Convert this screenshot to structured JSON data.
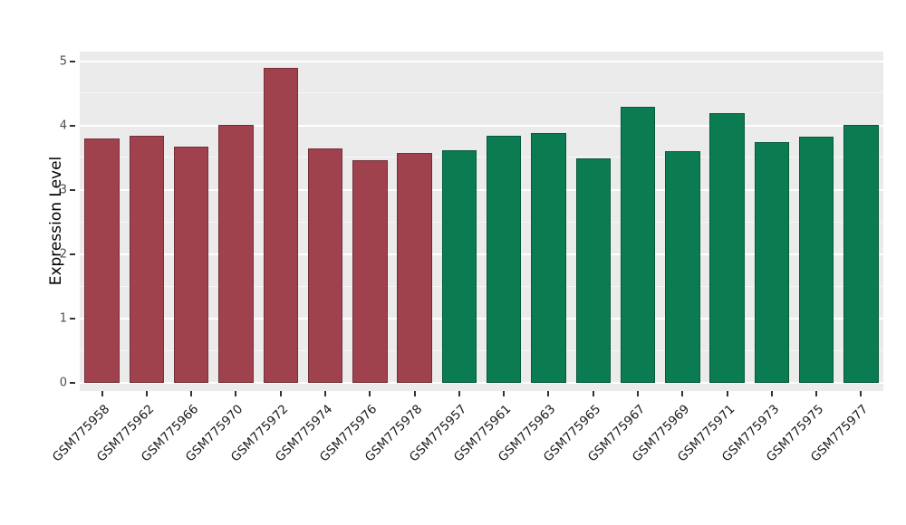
{
  "chart_data": {
    "type": "bar",
    "title": "",
    "xlabel": "",
    "ylabel": "Expression Level",
    "ylim": [
      0,
      5
    ],
    "yticks": [
      0,
      1,
      2,
      3,
      4,
      5
    ],
    "minor_gridlines": [
      0.5,
      1.5,
      2.5,
      3.5,
      4.5
    ],
    "grid": true,
    "legend_position": "none",
    "categories": [
      "GSM775958",
      "GSM775962",
      "GSM775966",
      "GSM775970",
      "GSM775972",
      "GSM775974",
      "GSM775976",
      "GSM775978",
      "GSM775957",
      "GSM775961",
      "GSM775963",
      "GSM775965",
      "GSM775967",
      "GSM775969",
      "GSM775971",
      "GSM775973",
      "GSM775975",
      "GSM775977"
    ],
    "values": [
      3.8,
      3.85,
      3.67,
      4.01,
      4.9,
      3.65,
      3.47,
      3.57,
      3.62,
      3.84,
      3.88,
      3.49,
      4.3,
      3.6,
      4.19,
      3.74,
      3.83,
      4.01
    ],
    "groups": [
      0,
      0,
      0,
      0,
      0,
      0,
      0,
      0,
      1,
      1,
      1,
      1,
      1,
      1,
      1,
      1,
      1,
      1
    ],
    "group_colors": [
      "#A0424E",
      "#0B7C52"
    ],
    "colors": {
      "panel_background": "#EBEBEB",
      "gridline": "#FFFFFF",
      "tick_text": "#4D4D4D",
      "axis_text": "#000000"
    }
  }
}
